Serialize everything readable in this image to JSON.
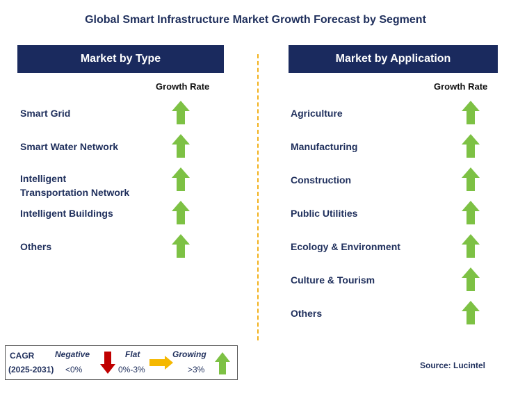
{
  "title": "Global Smart Infrastructure Market Growth Forecast by Segment",
  "left_panel": {
    "header": "Market by Type",
    "column_label": "Growth Rate",
    "items": [
      {
        "label": "Smart Grid",
        "trend": "growing"
      },
      {
        "label": "Smart Water Network",
        "trend": "growing"
      },
      {
        "label": "Intelligent\nTransportation Network",
        "trend": "growing"
      },
      {
        "label": "Intelligent Buildings",
        "trend": "growing"
      },
      {
        "label": "Others",
        "trend": "growing"
      }
    ]
  },
  "right_panel": {
    "header": "Market by Application",
    "column_label": "Growth Rate",
    "items": [
      {
        "label": "Agriculture",
        "trend": "growing"
      },
      {
        "label": "Manufacturing",
        "trend": "growing"
      },
      {
        "label": "Construction",
        "trend": "growing"
      },
      {
        "label": "Public Utilities",
        "trend": "growing"
      },
      {
        "label": "Ecology & Environment",
        "trend": "growing"
      },
      {
        "label": "Culture & Tourism",
        "trend": "growing"
      },
      {
        "label": "Others",
        "trend": "growing"
      }
    ]
  },
  "legend": {
    "cagr_label": "CAGR",
    "period": "(2025-2031)",
    "negative": {
      "label": "Negative",
      "range": "<0%"
    },
    "flat": {
      "label": "Flat",
      "range": "0%-3%"
    },
    "growing": {
      "label": "Growing",
      "range": ">3%"
    }
  },
  "source": "Source: Lucintel",
  "colors": {
    "header_bg": "#1a2a5e",
    "text": "#1f2f5c",
    "growing_arrow": "#7dc144",
    "negative_arrow": "#c00000",
    "flat_arrow": "#f5b800",
    "divider": "#f2b21c"
  }
}
